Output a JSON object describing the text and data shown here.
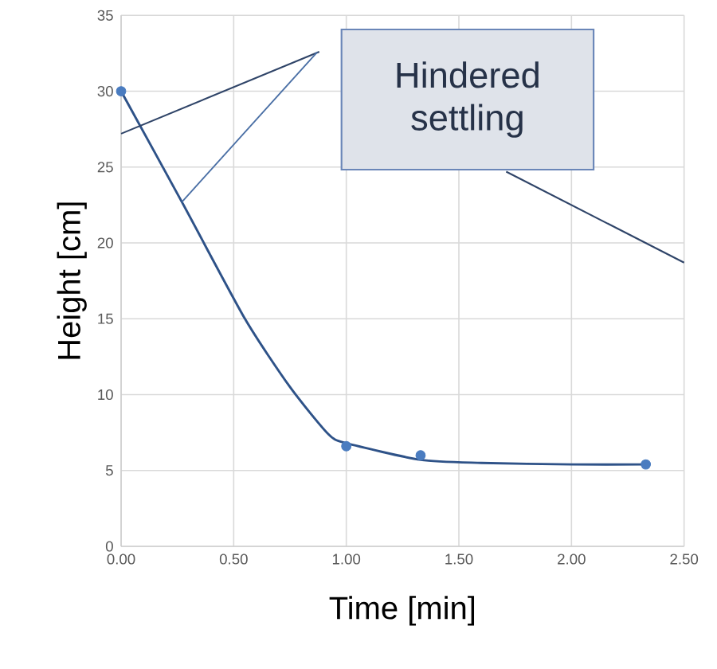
{
  "chart_data": {
    "type": "scatter",
    "xlabel": "Time [min]",
    "ylabel": "Height [cm]",
    "xlim": [
      0,
      2.5
    ],
    "ylim": [
      0,
      35
    ],
    "xticks": [
      {
        "value": 0,
        "label": "0.00"
      },
      {
        "value": 0.5,
        "label": "0.50"
      },
      {
        "value": 1,
        "label": "1.00"
      },
      {
        "value": 1.5,
        "label": "1.50"
      },
      {
        "value": 2,
        "label": "2.00"
      },
      {
        "value": 2.5,
        "label": "2.50"
      }
    ],
    "yticks": [
      0,
      5,
      10,
      15,
      20,
      25,
      30,
      35
    ],
    "grid": true,
    "annotations": [
      "Hindered settling"
    ],
    "series": [
      {
        "type": "line",
        "marker": "none",
        "color": "#2e5288",
        "x": [
          0,
          0.27,
          0.55,
          0.75,
          0.92,
          1.0,
          1.33,
          1.6,
          2.0,
          2.33
        ],
        "values": [
          30,
          22.7,
          15,
          10.5,
          7.4,
          6.8,
          5.7,
          5.5,
          5.4,
          5.4
        ]
      },
      {
        "marker": "circle",
        "color": "#4a7cc0",
        "x": [
          0,
          1.0,
          1.33,
          2.33
        ],
        "values": [
          30,
          6.6,
          6.0,
          5.4
        ]
      },
      {
        "type": "line",
        "marker": "none",
        "color": "#2f4468",
        "x": [
          0,
          0.88
        ],
        "values": [
          27.2,
          32.6
        ]
      },
      {
        "type": "line",
        "marker": "none",
        "color": "#2f4468",
        "x": [
          1.71,
          2.5
        ],
        "values": [
          24.7,
          18.7
        ]
      }
    ]
  }
}
